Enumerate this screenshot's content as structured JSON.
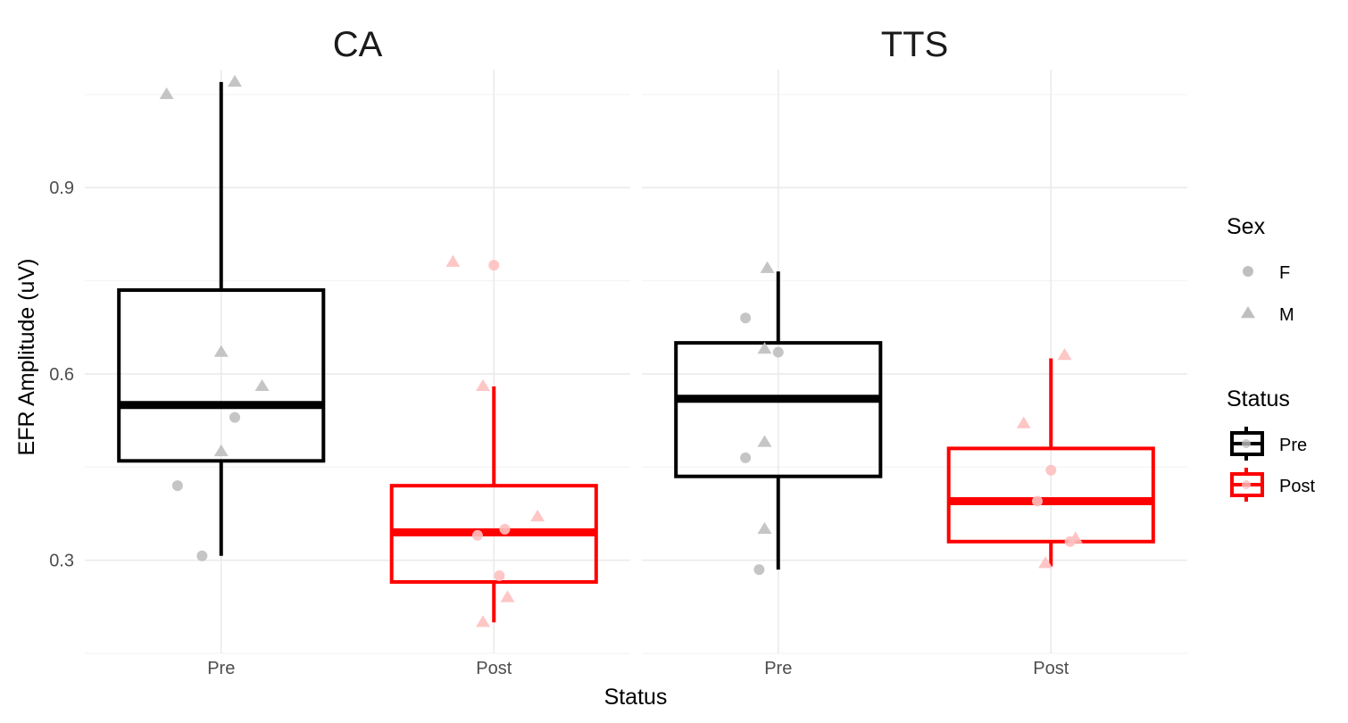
{
  "chart_data": {
    "type": "boxplot",
    "ylabel": "EFR Amplitude (uV)",
    "xlabel": "Status",
    "categories": [
      "Pre",
      "Post"
    ],
    "y_ticks": [
      "0.3",
      "0.6",
      "0.9"
    ],
    "y_tick_values": [
      0.3,
      0.6,
      0.9
    ],
    "ylim": [
      0.15,
      1.09
    ],
    "grid": true,
    "status_colors": {
      "Pre": "#000000",
      "Post": "#ff0000"
    },
    "facets": [
      {
        "title": "CA",
        "boxes": [
          {
            "status": "Pre",
            "min": 0.307,
            "q1": 0.46,
            "median": 0.55,
            "q3": 0.735,
            "max": 1.07
          },
          {
            "status": "Post",
            "min": 0.2,
            "q1": 0.265,
            "median": 0.345,
            "q3": 0.42,
            "max": 0.58
          }
        ],
        "points": [
          {
            "status": "Pre",
            "offset": -0.2,
            "y": 1.05,
            "sex": "M"
          },
          {
            "status": "Pre",
            "offset": 0.05,
            "y": 1.07,
            "sex": "M"
          },
          {
            "status": "Pre",
            "offset": 0.0,
            "y": 0.635,
            "sex": "M"
          },
          {
            "status": "Pre",
            "offset": 0.15,
            "y": 0.58,
            "sex": "M"
          },
          {
            "status": "Pre",
            "offset": 0.05,
            "y": 0.53,
            "sex": "F"
          },
          {
            "status": "Pre",
            "offset": 0.0,
            "y": 0.475,
            "sex": "M"
          },
          {
            "status": "Pre",
            "offset": -0.16,
            "y": 0.42,
            "sex": "F"
          },
          {
            "status": "Pre",
            "offset": -0.07,
            "y": 0.307,
            "sex": "F"
          },
          {
            "status": "Post",
            "offset": -0.15,
            "y": 0.78,
            "sex": "M"
          },
          {
            "status": "Post",
            "offset": 0.0,
            "y": 0.775,
            "sex": "F"
          },
          {
            "status": "Post",
            "offset": -0.04,
            "y": 0.58,
            "sex": "M"
          },
          {
            "status": "Post",
            "offset": 0.16,
            "y": 0.37,
            "sex": "M"
          },
          {
            "status": "Post",
            "offset": 0.04,
            "y": 0.35,
            "sex": "F"
          },
          {
            "status": "Post",
            "offset": -0.06,
            "y": 0.34,
            "sex": "F"
          },
          {
            "status": "Post",
            "offset": 0.02,
            "y": 0.275,
            "sex": "F"
          },
          {
            "status": "Post",
            "offset": 0.05,
            "y": 0.24,
            "sex": "M"
          },
          {
            "status": "Post",
            "offset": -0.04,
            "y": 0.2,
            "sex": "M"
          }
        ]
      },
      {
        "title": "TTS",
        "boxes": [
          {
            "status": "Pre",
            "min": 0.285,
            "q1": 0.435,
            "median": 0.56,
            "q3": 0.65,
            "max": 0.765
          },
          {
            "status": "Post",
            "min": 0.29,
            "q1": 0.33,
            "median": 0.395,
            "q3": 0.48,
            "max": 0.625
          }
        ],
        "points": [
          {
            "status": "Pre",
            "offset": -0.04,
            "y": 0.77,
            "sex": "M"
          },
          {
            "status": "Pre",
            "offset": -0.12,
            "y": 0.69,
            "sex": "F"
          },
          {
            "status": "Pre",
            "offset": -0.05,
            "y": 0.64,
            "sex": "M"
          },
          {
            "status": "Pre",
            "offset": 0.0,
            "y": 0.635,
            "sex": "F"
          },
          {
            "status": "Pre",
            "offset": -0.05,
            "y": 0.49,
            "sex": "M"
          },
          {
            "status": "Pre",
            "offset": -0.12,
            "y": 0.465,
            "sex": "F"
          },
          {
            "status": "Pre",
            "offset": -0.05,
            "y": 0.35,
            "sex": "M"
          },
          {
            "status": "Pre",
            "offset": -0.07,
            "y": 0.285,
            "sex": "F"
          },
          {
            "status": "Post",
            "offset": 0.05,
            "y": 0.63,
            "sex": "M"
          },
          {
            "status": "Post",
            "offset": -0.1,
            "y": 0.52,
            "sex": "M"
          },
          {
            "status": "Post",
            "offset": 0.0,
            "y": 0.445,
            "sex": "F"
          },
          {
            "status": "Post",
            "offset": -0.05,
            "y": 0.395,
            "sex": "F"
          },
          {
            "status": "Post",
            "offset": 0.09,
            "y": 0.335,
            "sex": "M"
          },
          {
            "status": "Post",
            "offset": 0.07,
            "y": 0.33,
            "sex": "F"
          },
          {
            "status": "Post",
            "offset": -0.02,
            "y": 0.295,
            "sex": "M"
          }
        ]
      }
    ],
    "legends": [
      {
        "title": "Sex",
        "entries": [
          {
            "label": "F",
            "shape": "circle"
          },
          {
            "label": "M",
            "shape": "triangle"
          }
        ]
      },
      {
        "title": "Status",
        "entries": [
          {
            "label": "Pre",
            "color": "#000000"
          },
          {
            "label": "Post",
            "color": "#ff0000"
          }
        ]
      }
    ],
    "point_colors": {
      "Pre": "#bfbfbf",
      "Post": "#ffc0c0"
    }
  }
}
